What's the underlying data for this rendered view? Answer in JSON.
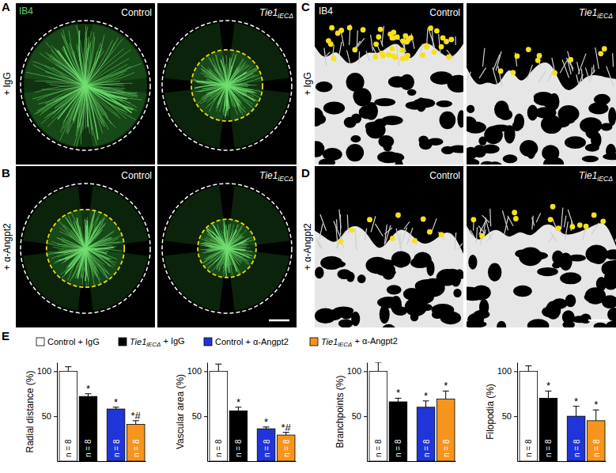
{
  "figure": {
    "panel_labels": [
      "A",
      "B",
      "C",
      "D",
      "E"
    ],
    "stain": "IB4",
    "row_labels": [
      "+ IgG",
      "+ α-Angpt2"
    ],
    "column_labels": [
      {
        "name": "Control"
      },
      {
        "name": "Tie1",
        "sub": "iECΔ"
      }
    ],
    "legend": [
      {
        "name": "Control + IgG",
        "color": "#ffffff"
      },
      {
        "name": "Tie1",
        "sub": "iECΔ",
        "suffix": " + IgG",
        "color": "#000000"
      },
      {
        "name": "Control + α-Angpt2",
        "color": "#1f35d8"
      },
      {
        "name": "Tie1",
        "sub": "iECΔ",
        "suffix": " + α-Angpt2",
        "color": "#f7941d"
      }
    ]
  },
  "chart_data": [
    {
      "type": "bar",
      "y_label": "Radial distance (%)",
      "categories": [
        null,
        null,
        null,
        null
      ],
      "values": [
        100,
        72,
        58,
        41
      ],
      "errors": [
        5,
        3,
        2,
        4
      ],
      "colors": [
        "#ffffff",
        "#000000",
        "#1f35d8",
        "#f7941d"
      ],
      "n_labels": [
        "n = 8",
        "n = 8",
        "n = 8",
        "n = 8"
      ],
      "significance": [
        null,
        "*",
        "*",
        "*#"
      ],
      "ylim": [
        0,
        110
      ],
      "yticks": [
        50,
        100
      ],
      "tick_labels": "y"
    },
    {
      "type": "bar",
      "y_label": "Vascular area (%)",
      "categories": [
        null,
        null,
        null,
        null
      ],
      "values": [
        100,
        56,
        36,
        29
      ],
      "errors": [
        8,
        4,
        2,
        3
      ],
      "colors": [
        "#ffffff",
        "#000000",
        "#1f35d8",
        "#f7941d"
      ],
      "n_labels": [
        "n = 8",
        "n = 8",
        "n = 8",
        "n = 8"
      ],
      "significance": [
        null,
        "*",
        "*",
        "*#"
      ],
      "ylim": [
        0,
        110
      ],
      "yticks": [
        50,
        100
      ],
      "tick_labels": "y"
    },
    {
      "type": "bar",
      "y_label": "Branchpoints (%)",
      "categories": [
        null,
        null,
        null,
        null
      ],
      "values": [
        100,
        66,
        60,
        69
      ],
      "errors": [
        10,
        4,
        7,
        9
      ],
      "colors": [
        "#ffffff",
        "#000000",
        "#1f35d8",
        "#f7941d"
      ],
      "n_labels": [
        "n = 8",
        "n = 8",
        "n = 8",
        "n = 8"
      ],
      "significance": [
        null,
        "*",
        "*",
        "*"
      ],
      "ylim": [
        0,
        110
      ],
      "yticks": [
        50,
        100
      ],
      "tick_labels": "y"
    },
    {
      "type": "bar",
      "y_label": "Filopodia (%)",
      "categories": [
        null,
        null,
        null,
        null
      ],
      "values": [
        100,
        70,
        50,
        45
      ],
      "errors": [
        6,
        8,
        11,
        12
      ],
      "colors": [
        "#ffffff",
        "#000000",
        "#1f35d8",
        "#f7941d"
      ],
      "n_labels": [
        "n = 8",
        "n = 8",
        "n = 8",
        "n = 8"
      ],
      "significance": [
        null,
        "*",
        "*",
        "*"
      ],
      "ylim": [
        0,
        110
      ],
      "yticks": [
        50,
        100
      ],
      "tick_labels": "y"
    }
  ]
}
